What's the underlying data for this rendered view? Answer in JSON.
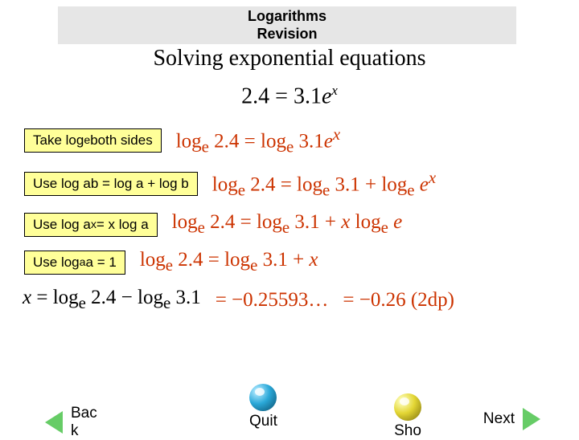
{
  "colors": {
    "pill_bg": "#ffff99",
    "math_color": "#cc3300",
    "header_bg": "#e6e6e6",
    "arrow_green": "#66cc66"
  },
  "header": {
    "line1": "Logarithms",
    "line2": "Revision"
  },
  "subtitle": "Solving exponential equations",
  "main_equation": "2.4 = 3.1eˣ",
  "steps": [
    {
      "hint_html": "Take log<sub>e</sub> both sides",
      "hint_text": "Take log_e both sides",
      "math_html": "log<sub>e</sub> 2.4 = log<sub>e</sub> 3.1<i>e</i><sup><i>x</i></sup>"
    },
    {
      "hint_html": "Use log ab = log a + log b",
      "hint_text": "Use log ab = log a + log b",
      "math_html": "log<sub>e</sub> 2.4 = log<sub>e</sub> 3.1 + log<sub>e</sub> <i>e</i><sup><i>x</i></sup>"
    },
    {
      "hint_html": "Use log a<sup>x</sup> = x log a",
      "hint_text": "Use log a^x = x log a",
      "math_html": "log<sub>e</sub> 2.4 = log<sub>e</sub> 3.1 + <i>x</i> log<sub>e</sub> <i>e</i>"
    },
    {
      "hint_html": "Use log<sub>a</sub> a = 1",
      "hint_text": "Use log_a a = 1",
      "math_html": "log<sub>e</sub> 2.4 = log<sub>e</sub> 3.1 + <i>x</i>"
    }
  ],
  "final": {
    "lhs_html": "<i>x</i> = log<sub>e</sub> 2.4 − log<sub>e</sub> 3.1",
    "mid": "= −0.25593…",
    "rhs": "= −0.26 (2dp)"
  },
  "nav": {
    "back": "Bac\nk",
    "quit": "Quit",
    "show": "Sho",
    "next": "Next"
  }
}
